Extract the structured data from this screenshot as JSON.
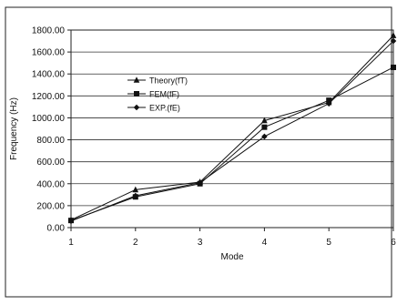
{
  "chart_data": {
    "type": "line",
    "title": "",
    "xlabel": "Mode",
    "ylabel": "Frequency (Hz)",
    "x": [
      1,
      2,
      3,
      4,
      5,
      6
    ],
    "xlim": [
      1,
      6
    ],
    "ylim": [
      0,
      1800
    ],
    "yticks": [
      "0.00",
      "200.00",
      "400.00",
      "600.00",
      "800.00",
      "1000.00",
      "1200.00",
      "1400.00",
      "1600.00",
      "1800.00"
    ],
    "xticks": [
      "1",
      "2",
      "3",
      "4",
      "5",
      "6"
    ],
    "grid": "horizontal",
    "legend_position": "upper-left inside plot",
    "series": [
      {
        "name": "Theory(fT)",
        "marker": "triangle",
        "color": "#111111",
        "values": [
          70,
          345,
          415,
          975,
          1140,
          1750
        ]
      },
      {
        "name": "FEM(fF)",
        "marker": "square",
        "color": "#111111",
        "values": [
          65,
          280,
          400,
          915,
          1160,
          1460
        ]
      },
      {
        "name": "EXP.(fE)",
        "marker": "diamond",
        "color": "#111111",
        "values": [
          60,
          290,
          410,
          830,
          1130,
          1700
        ]
      }
    ]
  }
}
